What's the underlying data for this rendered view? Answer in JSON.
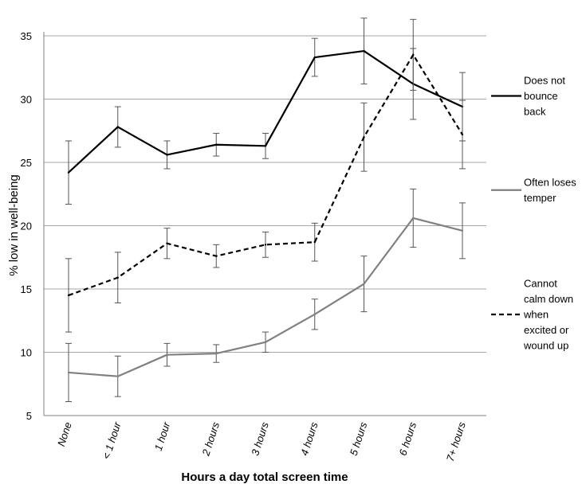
{
  "chart_data": {
    "type": "line",
    "title": "",
    "xlabel": "Hours a day total screen time",
    "ylabel": "% low in well-being",
    "ylim": [
      5,
      36.5
    ],
    "yticks": [
      5,
      10,
      15,
      20,
      25,
      30,
      35
    ],
    "grid": true,
    "legend_position": "right",
    "categories": [
      "None",
      "< 1 hour",
      "1 hour",
      "2 hours",
      "3 hours",
      "4 hours",
      "5 hours",
      "6 hours",
      "7+ hours"
    ],
    "series": [
      {
        "name": "Does not bounce back",
        "legend_lines": [
          "Does not",
          "bounce",
          "back"
        ],
        "color": "#000000",
        "dash": "solid",
        "values": [
          24.2,
          27.8,
          25.6,
          26.4,
          26.3,
          33.3,
          33.8,
          31.2,
          29.4
        ],
        "err_low": [
          21.7,
          26.2,
          24.5,
          25.5,
          25.3,
          31.8,
          31.2,
          28.4,
          26.7
        ],
        "err_high": [
          26.7,
          29.4,
          26.7,
          27.3,
          27.3,
          34.8,
          36.4,
          34.0,
          32.1
        ]
      },
      {
        "name": "Often loses temper",
        "legend_lines": [
          "Often loses",
          "temper"
        ],
        "color": "#808080",
        "dash": "solid",
        "values": [
          8.4,
          8.1,
          9.8,
          9.9,
          10.8,
          13.0,
          15.4,
          20.6,
          19.6
        ],
        "err_low": [
          6.1,
          6.5,
          8.9,
          9.2,
          10.0,
          11.8,
          13.2,
          18.3,
          17.4
        ],
        "err_high": [
          10.7,
          9.7,
          10.7,
          10.6,
          11.6,
          14.2,
          17.6,
          22.9,
          21.8
        ]
      },
      {
        "name": "Cannot calm down when excited or wound up",
        "legend_lines": [
          "Cannot",
          "calm down",
          "when",
          "excited or",
          "wound up"
        ],
        "color": "#000000",
        "dash": "dashed",
        "values": [
          14.5,
          15.9,
          18.6,
          17.6,
          18.5,
          18.7,
          27.0,
          33.5,
          27.2
        ],
        "err_low": [
          11.6,
          13.9,
          17.4,
          16.7,
          17.5,
          17.2,
          24.3,
          30.7,
          24.5
        ],
        "err_high": [
          17.4,
          17.9,
          19.8,
          18.5,
          19.5,
          20.2,
          29.7,
          36.3,
          29.9
        ]
      }
    ]
  }
}
